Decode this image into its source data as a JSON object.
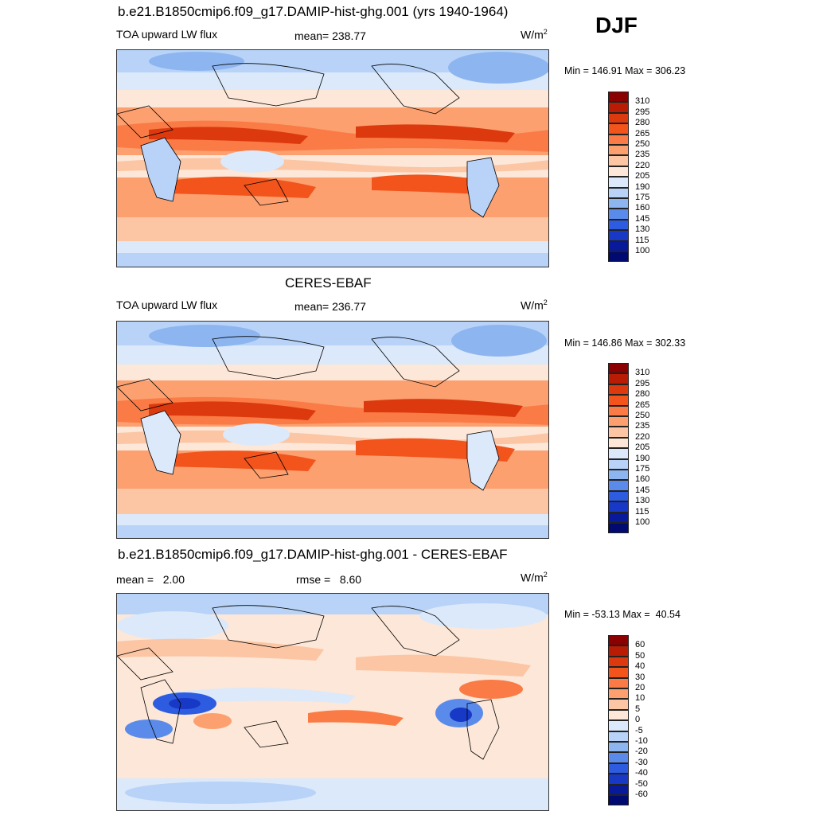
{
  "season": "DJF",
  "panels": [
    {
      "id": "model",
      "title": "b.e21.B1850cmip6.f09_g17.DAMIP-hist-ghg.001 (yrs 1940-1964)",
      "left_label": "TOA upward LW flux",
      "center_label": "mean= 238.77",
      "units": "W/m",
      "units_sup": "2",
      "minmax": "Min = 146.91 Max = 306.23",
      "colorbar_labels": [
        "310",
        "295",
        "280",
        "265",
        "250",
        "235",
        "220",
        "205",
        "190",
        "175",
        "160",
        "145",
        "130",
        "115",
        "100"
      ],
      "colorbar_colors": [
        "#8b0000",
        "#b81c05",
        "#dc3a0e",
        "#f2541c",
        "#fa7b45",
        "#fca070",
        "#fcc5a3",
        "#fde7d8",
        "#dbe9fa",
        "#b8d3f7",
        "#8db5f0",
        "#5b8bea",
        "#2e5ce0",
        "#1838c6",
        "#08199a",
        "#000a70"
      ]
    },
    {
      "id": "obs",
      "title": "CERES-EBAF",
      "left_label": "TOA upward LW flux",
      "center_label": "mean= 236.77",
      "units": "W/m",
      "units_sup": "2",
      "minmax": "Min = 146.86 Max = 302.33",
      "colorbar_labels": [
        "310",
        "295",
        "280",
        "265",
        "250",
        "235",
        "220",
        "205",
        "190",
        "175",
        "160",
        "145",
        "130",
        "115",
        "100"
      ],
      "colorbar_colors": [
        "#8b0000",
        "#b81c05",
        "#dc3a0e",
        "#f2541c",
        "#fa7b45",
        "#fca070",
        "#fcc5a3",
        "#fde7d8",
        "#dbe9fa",
        "#b8d3f7",
        "#8db5f0",
        "#5b8bea",
        "#2e5ce0",
        "#1838c6",
        "#08199a",
        "#000a70"
      ]
    },
    {
      "id": "diff",
      "title": "b.e21.B1850cmip6.f09_g17.DAMIP-hist-ghg.001 - CERES-EBAF",
      "left_label": "mean =   2.00",
      "center_label": "rmse =   8.60",
      "units": "W/m",
      "units_sup": "2",
      "minmax": "Min = -53.13 Max =  40.54",
      "colorbar_labels": [
        "60",
        "50",
        "40",
        "30",
        "20",
        "10",
        "5",
        "0",
        "-5",
        "-10",
        "-20",
        "-30",
        "-40",
        "-50",
        "-60"
      ],
      "colorbar_colors": [
        "#8b0000",
        "#b81c05",
        "#dc3a0e",
        "#f2541c",
        "#fa7b45",
        "#fca070",
        "#fcc5a3",
        "#fde7d8",
        "#dbe9fa",
        "#b8d3f7",
        "#8db5f0",
        "#5b8bea",
        "#2e5ce0",
        "#1838c6",
        "#08199a",
        "#000a70"
      ]
    }
  ]
}
